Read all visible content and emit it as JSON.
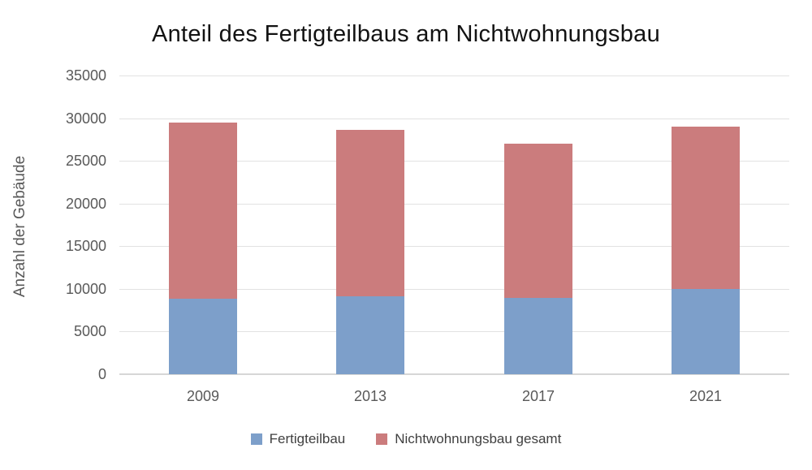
{
  "title": "Anteil des Fertigteilbaus am Nichtwohnungsbau",
  "colors": {
    "fertigteilbau_blue": "#7D9FCA",
    "gesamt_red": "#CB7C7D",
    "gridline": "#E2E2E2",
    "axis_line": "#D6D6D6",
    "tick_text": "#595959",
    "title_text": "#121212",
    "legend_text": "#404040",
    "background": "#FFFFFF"
  },
  "chart_data": {
    "type": "bar",
    "stacked": true,
    "title": "Anteil des Fertigteilbaus am Nichtwohnungsbau",
    "xlabel": "",
    "ylabel": "Anzahl der Gebäude",
    "categories": [
      "2009",
      "2013",
      "2017",
      "2021"
    ],
    "series": [
      {
        "name": "Fertigteilbau",
        "color": "#7D9FCA",
        "values": [
          8900,
          9100,
          8900,
          10000
        ]
      },
      {
        "name": "Nichtwohnungsbau gesamt",
        "color": "#CB7C7D",
        "values": [
          20600,
          19500,
          18100,
          19000
        ]
      }
    ],
    "stack_totals": [
      29500,
      28600,
      27000,
      29000
    ],
    "ylim": [
      0,
      35000
    ],
    "yticks": [
      0,
      5000,
      10000,
      15000,
      20000,
      25000,
      30000,
      35000
    ],
    "ytick_labels": [
      "0",
      "5000",
      "10000",
      "15000",
      "20000",
      "25000",
      "30000",
      "35000"
    ],
    "grid": "horizontal-only",
    "legend_position": "bottom-center"
  }
}
